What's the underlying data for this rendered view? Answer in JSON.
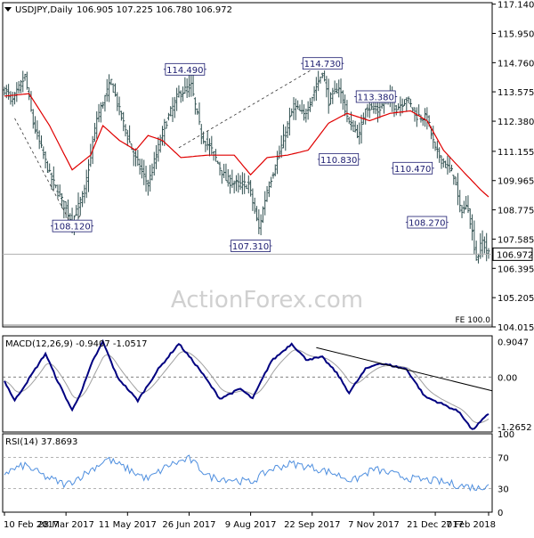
{
  "header": {
    "symbol_label": "USDJPY,Daily",
    "ohlc": "106.905 107.225 106.780 106.972"
  },
  "watermark": "ActionForex.com",
  "colors": {
    "background": "#ffffff",
    "border": "#000000",
    "grid": "#c8c8c8",
    "bar": "#2f4f4f",
    "sma": "#e00000",
    "macd_line": "#000080",
    "macd_signal": "#a0a0a0",
    "rsi_line": "#4f8fdf",
    "label_border": "#1a1a6e",
    "label_text": "#1a1a6e",
    "watermark": "#d0d0d0"
  },
  "chart_data": [
    {
      "type": "candlestick",
      "name": "price",
      "title": "USDJPY,Daily",
      "y_ticks": [
        "117.140",
        "115.950",
        "114.760",
        "113.575",
        "112.380",
        "111.155",
        "109.965",
        "108.775",
        "107.585",
        "106.395",
        "105.205",
        "104.015"
      ],
      "ylim": [
        104.015,
        117.2
      ],
      "x_ticks": [
        "10 Feb 2017",
        "28 Mar 2017",
        "11 May 2017",
        "26 Jun 2017",
        "9 Aug 2017",
        "22 Sep 2017",
        "7 Nov 2017",
        "21 Dec 2017",
        "7 Feb 2018"
      ],
      "current_price": "106.972",
      "current_price_value": 106.972,
      "price_anchors": [
        {
          "i": 0,
          "p": 113.7
        },
        {
          "i": 4,
          "p": 113.2
        },
        {
          "i": 10,
          "p": 114.2
        },
        {
          "i": 14,
          "p": 112.3
        },
        {
          "i": 22,
          "p": 110.2
        },
        {
          "i": 30,
          "p": 108.8
        },
        {
          "i": 33,
          "p": 108.3
        },
        {
          "i": 39,
          "p": 109.5
        },
        {
          "i": 45,
          "p": 112.5
        },
        {
          "i": 52,
          "p": 114.0
        },
        {
          "i": 56,
          "p": 112.8
        },
        {
          "i": 63,
          "p": 111.0
        },
        {
          "i": 70,
          "p": 109.8
        },
        {
          "i": 78,
          "p": 112.2
        },
        {
          "i": 85,
          "p": 113.5
        },
        {
          "i": 91,
          "p": 113.8
        },
        {
          "i": 96,
          "p": 111.8
        },
        {
          "i": 101,
          "p": 111.2
        },
        {
          "i": 108,
          "p": 110.0
        },
        {
          "i": 114,
          "p": 109.8
        },
        {
          "i": 119,
          "p": 109.8
        },
        {
          "i": 124,
          "p": 108.0
        },
        {
          "i": 128,
          "p": 109.6
        },
        {
          "i": 133,
          "p": 110.8
        },
        {
          "i": 138,
          "p": 112.2
        },
        {
          "i": 141,
          "p": 113.0
        },
        {
          "i": 146,
          "p": 112.6
        },
        {
          "i": 151,
          "p": 113.6
        },
        {
          "i": 155,
          "p": 114.4
        },
        {
          "i": 158,
          "p": 113.2
        },
        {
          "i": 163,
          "p": 113.8
        },
        {
          "i": 168,
          "p": 112.3
        },
        {
          "i": 173,
          "p": 111.8
        },
        {
          "i": 176,
          "p": 113.0
        },
        {
          "i": 182,
          "p": 112.8
        },
        {
          "i": 187,
          "p": 113.4
        },
        {
          "i": 191,
          "p": 112.9
        },
        {
          "i": 196,
          "p": 113.3
        },
        {
          "i": 201,
          "p": 112.6
        },
        {
          "i": 206,
          "p": 112.5
        },
        {
          "i": 210,
          "p": 111.2
        },
        {
          "i": 215,
          "p": 110.6
        },
        {
          "i": 219,
          "p": 110.2
        },
        {
          "i": 222,
          "p": 108.8
        },
        {
          "i": 226,
          "p": 108.9
        },
        {
          "i": 230,
          "p": 106.8
        },
        {
          "i": 233,
          "p": 107.5
        },
        {
          "i": 236,
          "p": 106.97
        }
      ],
      "sma_anchors": [
        {
          "i": 0,
          "p": 113.4
        },
        {
          "i": 12,
          "p": 113.5
        },
        {
          "i": 22,
          "p": 112.2
        },
        {
          "i": 33,
          "p": 110.4
        },
        {
          "i": 42,
          "p": 111.0
        },
        {
          "i": 48,
          "p": 112.2
        },
        {
          "i": 56,
          "p": 111.6
        },
        {
          "i": 64,
          "p": 111.2
        },
        {
          "i": 70,
          "p": 111.8
        },
        {
          "i": 77,
          "p": 111.6
        },
        {
          "i": 86,
          "p": 110.9
        },
        {
          "i": 99,
          "p": 111.0
        },
        {
          "i": 112,
          "p": 111.0
        },
        {
          "i": 120,
          "p": 110.2
        },
        {
          "i": 128,
          "p": 110.9
        },
        {
          "i": 138,
          "p": 111.0
        },
        {
          "i": 148,
          "p": 111.2
        },
        {
          "i": 158,
          "p": 112.3
        },
        {
          "i": 167,
          "p": 112.7
        },
        {
          "i": 178,
          "p": 112.4
        },
        {
          "i": 188,
          "p": 112.7
        },
        {
          "i": 198,
          "p": 112.8
        },
        {
          "i": 206,
          "p": 112.4
        },
        {
          "i": 214,
          "p": 111.2
        },
        {
          "i": 224,
          "p": 110.3
        },
        {
          "i": 232,
          "p": 109.6
        },
        {
          "i": 236,
          "p": 109.3
        }
      ],
      "annotations": [
        {
          "label": "108.120",
          "price": 108.12,
          "i": 33
        },
        {
          "label": "114.490",
          "price": 114.49,
          "i": 88
        },
        {
          "label": "107.310",
          "price": 107.31,
          "i": 120
        },
        {
          "label": "114.730",
          "price": 114.73,
          "i": 155
        },
        {
          "label": "110.830",
          "price": 110.83,
          "i": 163
        },
        {
          "label": "113.380",
          "price": 113.38,
          "i": 181
        },
        {
          "label": "110.470",
          "price": 110.47,
          "i": 199
        },
        {
          "label": "108.270",
          "price": 108.27,
          "i": 206
        }
      ],
      "fe_label": "FE 100.0"
    },
    {
      "type": "line",
      "name": "macd",
      "label": "MACD(12,26,9) -0.9407 -1.0517",
      "y_ticks": [
        "0.9047",
        "0.00",
        "-1.2652"
      ],
      "ylim": [
        -1.4,
        1.05
      ],
      "zero_line": 0,
      "macd_anchors": [
        {
          "i": 0,
          "v": -0.1
        },
        {
          "i": 5,
          "v": -0.6
        },
        {
          "i": 15,
          "v": 0.2
        },
        {
          "i": 20,
          "v": 0.6
        },
        {
          "i": 25,
          "v": 0.0
        },
        {
          "i": 33,
          "v": -0.85
        },
        {
          "i": 38,
          "v": -0.3
        },
        {
          "i": 43,
          "v": 0.4
        },
        {
          "i": 48,
          "v": 0.9
        },
        {
          "i": 55,
          "v": 0.0
        },
        {
          "i": 65,
          "v": -0.6
        },
        {
          "i": 75,
          "v": 0.2
        },
        {
          "i": 85,
          "v": 0.85
        },
        {
          "i": 95,
          "v": 0.2
        },
        {
          "i": 105,
          "v": -0.55
        },
        {
          "i": 115,
          "v": -0.3
        },
        {
          "i": 121,
          "v": -0.55
        },
        {
          "i": 130,
          "v": 0.4
        },
        {
          "i": 140,
          "v": 0.85
        },
        {
          "i": 147,
          "v": 0.45
        },
        {
          "i": 155,
          "v": 0.5
        },
        {
          "i": 162,
          "v": 0.1
        },
        {
          "i": 168,
          "v": -0.4
        },
        {
          "i": 176,
          "v": 0.2
        },
        {
          "i": 182,
          "v": 0.35
        },
        {
          "i": 188,
          "v": 0.3
        },
        {
          "i": 196,
          "v": 0.2
        },
        {
          "i": 205,
          "v": -0.5
        },
        {
          "i": 214,
          "v": -0.7
        },
        {
          "i": 222,
          "v": -0.9
        },
        {
          "i": 228,
          "v": -1.35
        },
        {
          "i": 236,
          "v": -0.94
        }
      ],
      "trendline": [
        {
          "i": 152,
          "v": 0.75
        },
        {
          "i": 236,
          "v": -0.35
        }
      ]
    },
    {
      "type": "line",
      "name": "rsi",
      "label": "RSI(14) 37.8693",
      "y_ticks": [
        "100",
        "70",
        "30",
        "0"
      ],
      "ylim": [
        0,
        100
      ],
      "levels": [
        70,
        30
      ],
      "rsi_anchors": [
        {
          "i": 0,
          "v": 50
        },
        {
          "i": 10,
          "v": 60
        },
        {
          "i": 20,
          "v": 45
        },
        {
          "i": 30,
          "v": 35
        },
        {
          "i": 40,
          "v": 50
        },
        {
          "i": 50,
          "v": 68
        },
        {
          "i": 60,
          "v": 55
        },
        {
          "i": 70,
          "v": 42
        },
        {
          "i": 80,
          "v": 60
        },
        {
          "i": 90,
          "v": 68
        },
        {
          "i": 100,
          "v": 45
        },
        {
          "i": 110,
          "v": 42
        },
        {
          "i": 120,
          "v": 38
        },
        {
          "i": 130,
          "v": 55
        },
        {
          "i": 140,
          "v": 62
        },
        {
          "i": 150,
          "v": 57
        },
        {
          "i": 160,
          "v": 50
        },
        {
          "i": 170,
          "v": 40
        },
        {
          "i": 180,
          "v": 55
        },
        {
          "i": 190,
          "v": 48
        },
        {
          "i": 200,
          "v": 42
        },
        {
          "i": 210,
          "v": 40
        },
        {
          "i": 220,
          "v": 35
        },
        {
          "i": 228,
          "v": 32
        },
        {
          "i": 232,
          "v": 30
        },
        {
          "i": 236,
          "v": 37.87
        }
      ]
    }
  ]
}
